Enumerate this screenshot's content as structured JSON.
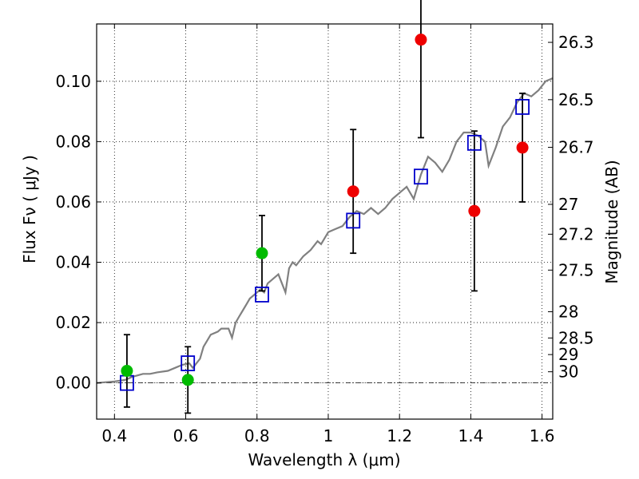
{
  "chart_data": {
    "type": "scatter",
    "xlabel": "Wavelength  λ (μm)",
    "ylabel_left": "Flux  Fν  ( μJy )",
    "ylabel_right": "Magnitude (AB)",
    "xlim": [
      0.35,
      1.63
    ],
    "ylim": [
      -0.012,
      0.119
    ],
    "grid": true,
    "x_ticks": [
      0.4,
      0.6,
      0.8,
      1.0,
      1.2,
      1.4,
      1.6
    ],
    "x_tick_labels": [
      "0.4",
      "0.6",
      "0.8",
      "1",
      "1.2",
      "1.4",
      "1.6"
    ],
    "y_ticks": [
      0.0,
      0.02,
      0.04,
      0.06,
      0.08,
      0.1
    ],
    "y_tick_labels": [
      "0.00",
      "0.02",
      "0.04",
      "0.06",
      "0.08",
      "0.10"
    ],
    "right_ticks": [
      {
        "label": "26.3",
        "flux": 0.1129
      },
      {
        "label": "26.5",
        "flux": 0.0939
      },
      {
        "label": "26.7",
        "flux": 0.0781
      },
      {
        "label": "27",
        "flux": 0.0592
      },
      {
        "label": "27.2",
        "flux": 0.0493
      },
      {
        "label": "27.5",
        "flux": 0.0374
      },
      {
        "label": "28",
        "flux": 0.0236
      },
      {
        "label": "28.5",
        "flux": 0.0149
      },
      {
        "label": "29",
        "flux": 0.0094
      },
      {
        "label": "30",
        "flux": 0.0037
      }
    ],
    "series": [
      {
        "name": "model_spectrum",
        "kind": "line",
        "color": "#808080",
        "points": [
          [
            0.35,
            0.0
          ],
          [
            0.4,
            0.0005
          ],
          [
            0.43,
            0.001
          ],
          [
            0.45,
            0.002
          ],
          [
            0.48,
            0.003
          ],
          [
            0.5,
            0.003
          ],
          [
            0.52,
            0.0035
          ],
          [
            0.55,
            0.004
          ],
          [
            0.57,
            0.005
          ],
          [
            0.59,
            0.006
          ],
          [
            0.61,
            0.0065
          ],
          [
            0.62,
            0.005
          ],
          [
            0.64,
            0.008
          ],
          [
            0.65,
            0.012
          ],
          [
            0.66,
            0.014
          ],
          [
            0.67,
            0.016
          ],
          [
            0.69,
            0.017
          ],
          [
            0.7,
            0.018
          ],
          [
            0.72,
            0.018
          ],
          [
            0.73,
            0.015
          ],
          [
            0.74,
            0.02
          ],
          [
            0.75,
            0.022
          ],
          [
            0.76,
            0.024
          ],
          [
            0.77,
            0.026
          ],
          [
            0.78,
            0.028
          ],
          [
            0.79,
            0.029
          ],
          [
            0.8,
            0.03
          ],
          [
            0.81,
            0.031
          ],
          [
            0.82,
            0.03
          ],
          [
            0.83,
            0.033
          ],
          [
            0.84,
            0.034
          ],
          [
            0.86,
            0.036
          ],
          [
            0.88,
            0.03
          ],
          [
            0.89,
            0.038
          ],
          [
            0.9,
            0.04
          ],
          [
            0.91,
            0.039
          ],
          [
            0.93,
            0.042
          ],
          [
            0.95,
            0.044
          ],
          [
            0.97,
            0.047
          ],
          [
            0.98,
            0.046
          ],
          [
            1.0,
            0.05
          ],
          [
            1.02,
            0.051
          ],
          [
            1.04,
            0.052
          ],
          [
            1.06,
            0.055
          ],
          [
            1.08,
            0.057
          ],
          [
            1.1,
            0.056
          ],
          [
            1.12,
            0.058
          ],
          [
            1.14,
            0.056
          ],
          [
            1.16,
            0.058
          ],
          [
            1.18,
            0.061
          ],
          [
            1.2,
            0.063
          ],
          [
            1.22,
            0.065
          ],
          [
            1.24,
            0.061
          ],
          [
            1.26,
            0.069
          ],
          [
            1.28,
            0.075
          ],
          [
            1.3,
            0.073
          ],
          [
            1.32,
            0.07
          ],
          [
            1.34,
            0.074
          ],
          [
            1.36,
            0.08
          ],
          [
            1.38,
            0.083
          ],
          [
            1.4,
            0.083
          ],
          [
            1.42,
            0.082
          ],
          [
            1.44,
            0.08
          ],
          [
            1.45,
            0.072
          ],
          [
            1.47,
            0.078
          ],
          [
            1.49,
            0.085
          ],
          [
            1.51,
            0.088
          ],
          [
            1.53,
            0.093
          ],
          [
            1.55,
            0.096
          ],
          [
            1.57,
            0.095
          ],
          [
            1.59,
            0.097
          ],
          [
            1.61,
            0.1
          ],
          [
            1.63,
            0.101
          ]
        ]
      },
      {
        "name": "model_bandpass_flux",
        "kind": "open_square",
        "color": "#0000cc",
        "points": [
          [
            0.435,
            0.0
          ],
          [
            0.606,
            0.0065
          ],
          [
            0.814,
            0.0293
          ],
          [
            1.07,
            0.0538
          ],
          [
            1.26,
            0.0684
          ],
          [
            1.41,
            0.0796
          ],
          [
            1.545,
            0.0915
          ]
        ]
      },
      {
        "name": "observed_green",
        "kind": "filled_circle",
        "color": "#00bb00",
        "points": [
          [
            0.435,
            0.004,
            0.012
          ],
          [
            0.606,
            0.001,
            0.011
          ],
          [
            0.814,
            0.043,
            0.0125
          ]
        ]
      },
      {
        "name": "observed_red",
        "kind": "filled_circle",
        "color": "#ee0000",
        "points": [
          [
            1.07,
            0.0635,
            0.0205
          ],
          [
            1.26,
            0.1138,
            0.0325
          ],
          [
            1.41,
            0.057,
            0.0265
          ],
          [
            1.545,
            0.078,
            0.018
          ]
        ]
      }
    ]
  }
}
